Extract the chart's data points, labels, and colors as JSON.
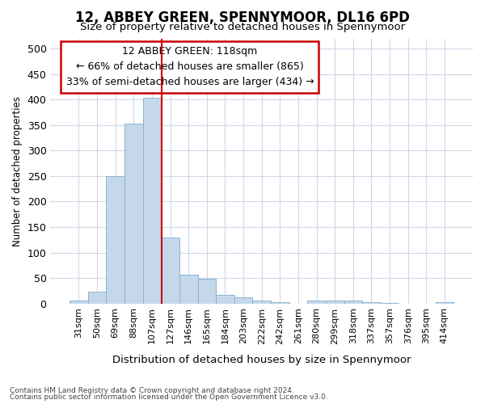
{
  "title": "12, ABBEY GREEN, SPENNYMOOR, DL16 6PD",
  "subtitle": "Size of property relative to detached houses in Spennymoor",
  "xlabel": "Distribution of detached houses by size in Spennymoor",
  "ylabel": "Number of detached properties",
  "categories": [
    "31sqm",
    "50sqm",
    "69sqm",
    "88sqm",
    "107sqm",
    "127sqm",
    "146sqm",
    "165sqm",
    "184sqm",
    "203sqm",
    "222sqm",
    "242sqm",
    "261sqm",
    "280sqm",
    "299sqm",
    "318sqm",
    "337sqm",
    "357sqm",
    "376sqm",
    "395sqm",
    "414sqm"
  ],
  "values": [
    5,
    23,
    250,
    353,
    403,
    130,
    57,
    48,
    17,
    12,
    5,
    2,
    0,
    6,
    5,
    5,
    2,
    1,
    0,
    0,
    3
  ],
  "bar_color": "#c5d8ea",
  "bar_edge_color": "#8ab4d0",
  "vline_color": "#cc0000",
  "annotation_title": "12 ABBEY GREEN: 118sqm",
  "annotation_line1": "← 66% of detached houses are smaller (865)",
  "annotation_line2": "33% of semi-detached houses are larger (434) →",
  "annotation_box_color": "#cc0000",
  "ylim": [
    0,
    520
  ],
  "yticks": [
    0,
    50,
    100,
    150,
    200,
    250,
    300,
    350,
    400,
    450,
    500
  ],
  "footnote1": "Contains HM Land Registry data © Crown copyright and database right 2024.",
  "footnote2": "Contains public sector information licensed under the Open Government Licence v3.0.",
  "bg_color": "#ffffff",
  "plot_bg_color": "#ffffff",
  "grid_color": "#d0d8e8"
}
